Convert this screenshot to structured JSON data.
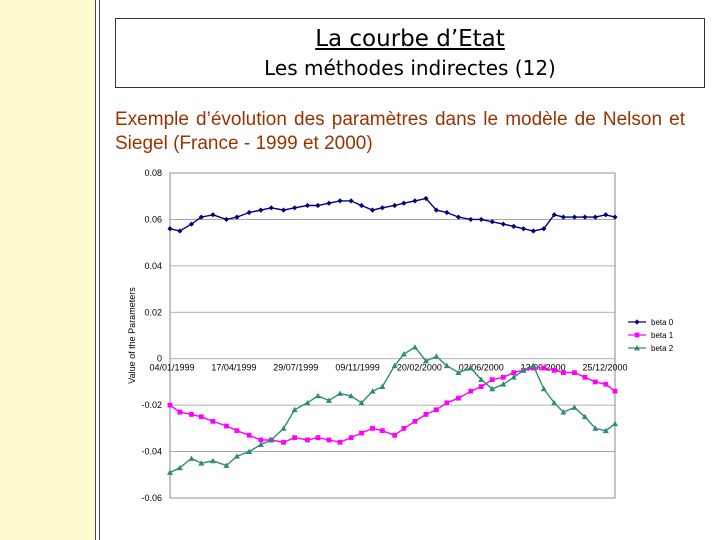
{
  "slide": {
    "title": "La courbe d’Etat",
    "subtitle": "Les méthodes indirectes (12)",
    "description": "Exemple d’évolution des paramètres dans le modèle de Nelson et Siegel (France - 1999 et 2000)"
  },
  "colors": {
    "background_band": "#fffbd0",
    "description_text": "#993300",
    "beta0": "#000080",
    "beta1": "#ff00ff",
    "beta2": "#2e8b7a"
  },
  "chart_data": {
    "type": "line",
    "ylabel": "Value of the Parameters",
    "xlabel": "",
    "ylim": [
      -0.06,
      0.08
    ],
    "yticks": [
      "0.08",
      "0.06",
      "0.04",
      "0.02",
      "0",
      "-0.02",
      "-0.04",
      "-0.06"
    ],
    "yticks_values": [
      0.08,
      0.06,
      0.04,
      0.02,
      0,
      -0.02,
      -0.04,
      -0.06
    ],
    "x_tick_labels": [
      "04/01/1999",
      "17/04/1999",
      "29/07/1999",
      "09/11/1999",
      "20/02/2000",
      "02/06/2000",
      "13/09/2000",
      "25/12/2000"
    ],
    "x_start": "1999-01-04",
    "x_end": "2000-12-29",
    "grid": "horizontal",
    "legend": "right",
    "series": [
      {
        "name": "beta 0",
        "marker": "diamond",
        "x": [
          "1999-01-04",
          "1999-01-20",
          "1999-02-08",
          "1999-02-24",
          "1999-03-15",
          "1999-04-06",
          "1999-04-23",
          "1999-05-13",
          "1999-06-01",
          "1999-06-18",
          "1999-07-08",
          "1999-07-26",
          "1999-08-16",
          "1999-09-02",
          "1999-09-20",
          "1999-10-08",
          "1999-10-26",
          "1999-11-12",
          "1999-11-30",
          "1999-12-16",
          "2000-01-05",
          "2000-01-20",
          "2000-02-07",
          "2000-02-25",
          "2000-03-13",
          "2000-03-30",
          "2000-04-18",
          "2000-05-08",
          "2000-05-25",
          "2000-06-12",
          "2000-06-30",
          "2000-07-17",
          "2000-08-02",
          "2000-08-18",
          "2000-09-04",
          "2000-09-21",
          "2000-10-06",
          "2000-10-24",
          "2000-11-10",
          "2000-11-27",
          "2000-12-14",
          "2000-12-29"
        ],
        "y": [
          0.056,
          0.055,
          0.058,
          0.061,
          0.062,
          0.06,
          0.061,
          0.063,
          0.064,
          0.065,
          0.064,
          0.065,
          0.066,
          0.066,
          0.067,
          0.068,
          0.068,
          0.066,
          0.064,
          0.065,
          0.066,
          0.067,
          0.068,
          0.069,
          0.064,
          0.063,
          0.061,
          0.06,
          0.06,
          0.059,
          0.058,
          0.057,
          0.056,
          0.055,
          0.056,
          0.062,
          0.061,
          0.061,
          0.061,
          0.061,
          0.062,
          0.061
        ]
      },
      {
        "name": "beta 1",
        "marker": "square",
        "x": [
          "1999-01-04",
          "1999-01-20",
          "1999-02-08",
          "1999-02-24",
          "1999-03-15",
          "1999-04-06",
          "1999-04-23",
          "1999-05-13",
          "1999-06-01",
          "1999-06-18",
          "1999-07-08",
          "1999-07-26",
          "1999-08-16",
          "1999-09-02",
          "1999-09-20",
          "1999-10-08",
          "1999-10-26",
          "1999-11-12",
          "1999-11-30",
          "1999-12-16",
          "2000-01-05",
          "2000-01-20",
          "2000-02-07",
          "2000-02-25",
          "2000-03-13",
          "2000-03-30",
          "2000-04-18",
          "2000-05-08",
          "2000-05-25",
          "2000-06-12",
          "2000-06-30",
          "2000-07-17",
          "2000-08-02",
          "2000-08-18",
          "2000-09-04",
          "2000-09-21",
          "2000-10-06",
          "2000-10-24",
          "2000-11-10",
          "2000-11-27",
          "2000-12-14",
          "2000-12-29"
        ],
        "y": [
          -0.02,
          -0.023,
          -0.024,
          -0.025,
          -0.027,
          -0.029,
          -0.031,
          -0.033,
          -0.035,
          -0.035,
          -0.036,
          -0.034,
          -0.035,
          -0.034,
          -0.035,
          -0.036,
          -0.034,
          -0.032,
          -0.03,
          -0.031,
          -0.033,
          -0.03,
          -0.027,
          -0.024,
          -0.022,
          -0.019,
          -0.017,
          -0.014,
          -0.012,
          -0.009,
          -0.008,
          -0.006,
          -0.005,
          -0.004,
          -0.004,
          -0.005,
          -0.006,
          -0.006,
          -0.008,
          -0.01,
          -0.011,
          -0.014
        ]
      },
      {
        "name": "beta 2",
        "marker": "triangle",
        "x": [
          "1999-01-04",
          "1999-01-20",
          "1999-02-08",
          "1999-02-24",
          "1999-03-15",
          "1999-04-06",
          "1999-04-23",
          "1999-05-13",
          "1999-06-01",
          "1999-06-18",
          "1999-07-08",
          "1999-07-26",
          "1999-08-16",
          "1999-09-02",
          "1999-09-20",
          "1999-10-08",
          "1999-10-26",
          "1999-11-12",
          "1999-11-30",
          "1999-12-16",
          "2000-01-05",
          "2000-01-20",
          "2000-02-07",
          "2000-02-25",
          "2000-03-13",
          "2000-03-30",
          "2000-04-18",
          "2000-05-08",
          "2000-05-25",
          "2000-06-12",
          "2000-06-30",
          "2000-07-17",
          "2000-08-02",
          "2000-08-18",
          "2000-09-04",
          "2000-09-21",
          "2000-10-06",
          "2000-10-24",
          "2000-11-10",
          "2000-11-27",
          "2000-12-14",
          "2000-12-29"
        ],
        "y": [
          -0.049,
          -0.047,
          -0.043,
          -0.045,
          -0.044,
          -0.046,
          -0.042,
          -0.04,
          -0.037,
          -0.035,
          -0.03,
          -0.022,
          -0.019,
          -0.016,
          -0.018,
          -0.015,
          -0.016,
          -0.019,
          -0.014,
          -0.012,
          -0.003,
          0.002,
          0.005,
          -0.001,
          0.001,
          -0.003,
          -0.006,
          -0.004,
          -0.009,
          -0.013,
          -0.011,
          -0.008,
          -0.005,
          -0.003,
          -0.013,
          -0.019,
          -0.023,
          -0.021,
          -0.025,
          -0.03,
          -0.031,
          -0.028
        ]
      }
    ]
  }
}
